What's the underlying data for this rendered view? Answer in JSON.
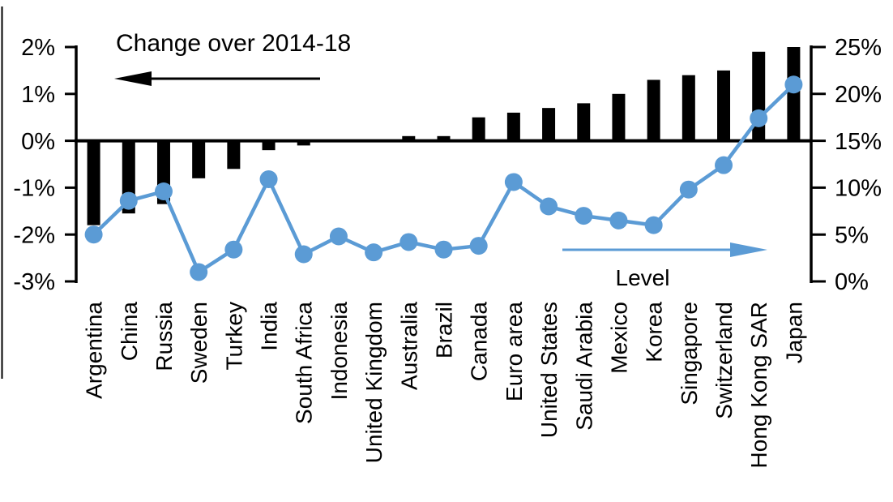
{
  "chart_data": {
    "type": "bar",
    "subtype": "combo-bar-line-dual-axis",
    "title": "Change over 2014-18",
    "categories": [
      "Argentina",
      "China",
      "Russia",
      "Sweden",
      "Turkey",
      "India",
      "South Africa",
      "Indonesia",
      "United Kingdom",
      "Australia",
      "Brazil",
      "Canada",
      "Euro area",
      "United States",
      "Saudi Arabia",
      "Mexico",
      "Korea",
      "Singapore",
      "Switzerland",
      "Hong Kong SAR",
      "Japan"
    ],
    "series": [
      {
        "name": "Change over 2014-18",
        "type": "bar",
        "axis": "left",
        "color": "#000000",
        "values": [
          -1.8,
          -1.55,
          -1.35,
          -0.8,
          -0.6,
          -0.2,
          -0.1,
          0,
          0,
          0.1,
          0.1,
          0.5,
          0.6,
          0.7,
          0.8,
          1.0,
          1.3,
          1.4,
          1.5,
          1.9,
          2.0
        ]
      },
      {
        "name": "Level",
        "type": "line",
        "axis": "right",
        "color": "#5B9BD5",
        "values": [
          5.0,
          8.6,
          9.6,
          1.0,
          3.4,
          10.9,
          2.9,
          4.8,
          3.1,
          4.2,
          3.4,
          3.8,
          10.6,
          8.0,
          7.0,
          6.5,
          6.0,
          9.8,
          12.4,
          17.4,
          21.0
        ]
      }
    ],
    "left_axis": {
      "ticks": [
        "2%",
        "1%",
        "0%",
        "-1%",
        "-2%",
        "-3%"
      ],
      "values": [
        2,
        1,
        0,
        -1,
        -2,
        -3
      ],
      "max": 2,
      "min": -3
    },
    "right_axis": {
      "ticks": [
        "25%",
        "20%",
        "15%",
        "10%",
        "5%",
        "0%"
      ],
      "values": [
        25,
        20,
        15,
        10,
        5,
        0
      ],
      "max": 25,
      "min": 0
    },
    "annotations": {
      "bar_label": {
        "text": "Change over 2014-18",
        "arrow_direction": "left",
        "color": "#000000"
      },
      "line_label": {
        "text": "Level",
        "arrow_direction": "right",
        "color": "#5B9BD5"
      }
    },
    "layout": {
      "grid": false,
      "legend": "in-plot annotations with arrows",
      "category_labels_rotated_90": true
    }
  }
}
